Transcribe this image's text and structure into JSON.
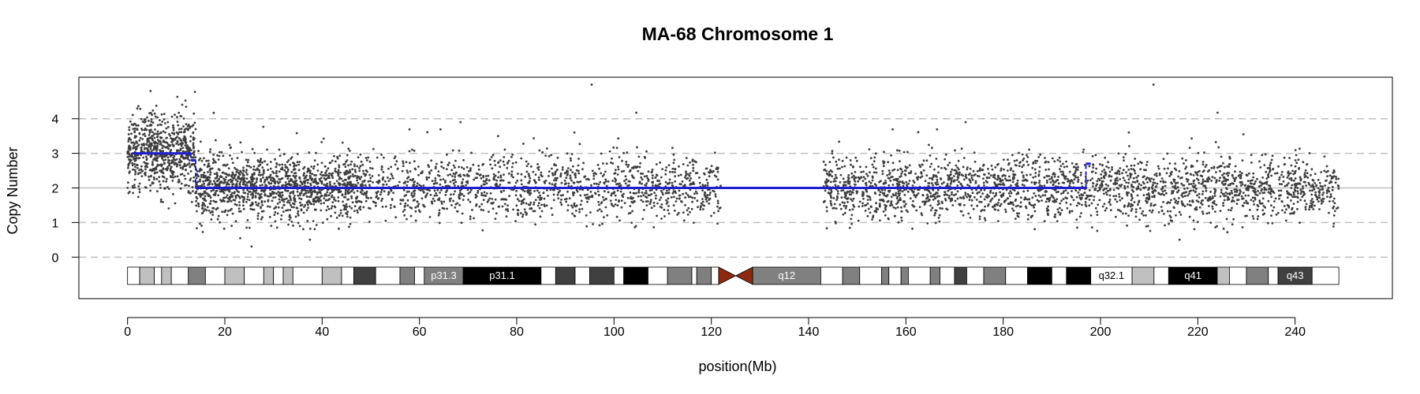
{
  "chart_data": {
    "type": "scatter",
    "title": "MA-68  Chromosome 1",
    "xlabel": "position(Mb)",
    "ylabel": "Copy Number",
    "xlim": [
      -10,
      260
    ],
    "ylim": [
      -1.2,
      5.2
    ],
    "x_ticks": [
      0,
      20,
      40,
      60,
      80,
      100,
      120,
      140,
      160,
      180,
      200,
      220,
      240
    ],
    "y_ticks": [
      0,
      1,
      2,
      3,
      4
    ],
    "grid": "dashed horizontal lines at 0, 1, 3, 4; solid line at 2",
    "colors": {
      "points": "#3d3d3d",
      "segments": "#1f1fd0",
      "centromere": "#8b2a10",
      "grid": "#c0c0c0"
    },
    "point_density": [
      {
        "start": 0,
        "end": 14,
        "center": 3.0,
        "spread": 0.55,
        "count": 700
      },
      {
        "start": 14,
        "end": 48,
        "center": 2.0,
        "spread": 0.45,
        "count": 1300
      },
      {
        "start": 48,
        "end": 122,
        "center": 2.0,
        "spread": 0.45,
        "count": 1300
      },
      {
        "start": 143,
        "end": 249,
        "center": 2.0,
        "spread": 0.45,
        "count": 2300
      }
    ],
    "segments": [
      {
        "x_start": 1,
        "x_end": 13,
        "value": 3
      },
      {
        "x_start": 13,
        "x_end": 14,
        "value": 2.8
      },
      {
        "x_start": 14,
        "x_end": 48,
        "value": 2
      },
      {
        "x_start": 48,
        "x_end": 197,
        "value": 2
      },
      {
        "x_start": 197,
        "x_end": 198,
        "value": 2.7
      }
    ],
    "cytobands": [
      {
        "start": 0,
        "end": 2.5,
        "stain": "gneg",
        "label": ""
      },
      {
        "start": 2.5,
        "end": 5.5,
        "stain": "gpos25",
        "label": ""
      },
      {
        "start": 5.5,
        "end": 7,
        "stain": "gneg",
        "label": ""
      },
      {
        "start": 7,
        "end": 9,
        "stain": "gpos25",
        "label": ""
      },
      {
        "start": 9,
        "end": 12.5,
        "stain": "gneg",
        "label": ""
      },
      {
        "start": 12.5,
        "end": 16,
        "stain": "gpos50",
        "label": ""
      },
      {
        "start": 16,
        "end": 20,
        "stain": "gneg",
        "label": ""
      },
      {
        "start": 20,
        "end": 24,
        "stain": "gpos25",
        "label": ""
      },
      {
        "start": 24,
        "end": 28,
        "stain": "gneg",
        "label": ""
      },
      {
        "start": 28,
        "end": 30,
        "stain": "gpos25",
        "label": ""
      },
      {
        "start": 30,
        "end": 32,
        "stain": "gneg",
        "label": ""
      },
      {
        "start": 32,
        "end": 34,
        "stain": "gpos25",
        "label": ""
      },
      {
        "start": 34,
        "end": 40,
        "stain": "gneg",
        "label": ""
      },
      {
        "start": 40,
        "end": 44,
        "stain": "gpos25",
        "label": ""
      },
      {
        "start": 44,
        "end": 46.5,
        "stain": "gneg",
        "label": ""
      },
      {
        "start": 46.5,
        "end": 51,
        "stain": "gpos75",
        "label": ""
      },
      {
        "start": 51,
        "end": 56,
        "stain": "gneg",
        "label": ""
      },
      {
        "start": 56,
        "end": 59,
        "stain": "gpos50",
        "label": ""
      },
      {
        "start": 59,
        "end": 61,
        "stain": "gneg",
        "label": ""
      },
      {
        "start": 61,
        "end": 69,
        "stain": "gpos50",
        "label": "p31.3"
      },
      {
        "start": 69,
        "end": 85,
        "stain": "gpos100",
        "label": "p31.1"
      },
      {
        "start": 85,
        "end": 88,
        "stain": "gneg",
        "label": ""
      },
      {
        "start": 88,
        "end": 92,
        "stain": "gpos75",
        "label": ""
      },
      {
        "start": 92,
        "end": 95,
        "stain": "gneg",
        "label": ""
      },
      {
        "start": 95,
        "end": 100,
        "stain": "gpos75",
        "label": ""
      },
      {
        "start": 100,
        "end": 102,
        "stain": "gneg",
        "label": ""
      },
      {
        "start": 102,
        "end": 107,
        "stain": "gpos100",
        "label": ""
      },
      {
        "start": 107,
        "end": 111,
        "stain": "gneg",
        "label": ""
      },
      {
        "start": 111,
        "end": 116,
        "stain": "gpos50",
        "label": ""
      },
      {
        "start": 116,
        "end": 117,
        "stain": "gneg",
        "label": ""
      },
      {
        "start": 117,
        "end": 120,
        "stain": "gpos50",
        "label": ""
      },
      {
        "start": 120,
        "end": 121.5,
        "stain": "gneg",
        "label": ""
      },
      {
        "start": 121.5,
        "end": 125,
        "stain": "acen",
        "label": ""
      },
      {
        "start": 125,
        "end": 128.5,
        "stain": "acen",
        "label": ""
      },
      {
        "start": 128.5,
        "end": 142.5,
        "stain": "gvar",
        "label": "q12"
      },
      {
        "start": 142.5,
        "end": 147,
        "stain": "gneg",
        "label": ""
      },
      {
        "start": 147,
        "end": 150.5,
        "stain": "gpos50",
        "label": ""
      },
      {
        "start": 150.5,
        "end": 155,
        "stain": "gneg",
        "label": ""
      },
      {
        "start": 155,
        "end": 156.5,
        "stain": "gpos50",
        "label": ""
      },
      {
        "start": 156.5,
        "end": 159,
        "stain": "gneg",
        "label": ""
      },
      {
        "start": 159,
        "end": 160.5,
        "stain": "gpos50",
        "label": ""
      },
      {
        "start": 160.5,
        "end": 165,
        "stain": "gneg",
        "label": ""
      },
      {
        "start": 165,
        "end": 167,
        "stain": "gpos50",
        "label": ""
      },
      {
        "start": 167,
        "end": 170,
        "stain": "gneg",
        "label": ""
      },
      {
        "start": 170,
        "end": 172.5,
        "stain": "gpos75",
        "label": ""
      },
      {
        "start": 172.5,
        "end": 176,
        "stain": "gneg",
        "label": ""
      },
      {
        "start": 176,
        "end": 180.5,
        "stain": "gpos50",
        "label": ""
      },
      {
        "start": 180.5,
        "end": 185,
        "stain": "gneg",
        "label": ""
      },
      {
        "start": 185,
        "end": 190,
        "stain": "gpos100",
        "label": ""
      },
      {
        "start": 190,
        "end": 193,
        "stain": "gneg",
        "label": ""
      },
      {
        "start": 193,
        "end": 198,
        "stain": "gpos100",
        "label": ""
      },
      {
        "start": 198,
        "end": 206.5,
        "stain": "gneg",
        "label": "q32.1"
      },
      {
        "start": 206.5,
        "end": 211,
        "stain": "gpos25",
        "label": ""
      },
      {
        "start": 211,
        "end": 214,
        "stain": "gneg",
        "label": ""
      },
      {
        "start": 214,
        "end": 224,
        "stain": "gpos100",
        "label": "q41"
      },
      {
        "start": 224,
        "end": 226.5,
        "stain": "gpos25",
        "label": ""
      },
      {
        "start": 226.5,
        "end": 230,
        "stain": "gneg",
        "label": ""
      },
      {
        "start": 230,
        "end": 234.5,
        "stain": "gpos50",
        "label": ""
      },
      {
        "start": 234.5,
        "end": 236.5,
        "stain": "gneg",
        "label": ""
      },
      {
        "start": 236.5,
        "end": 243.5,
        "stain": "gpos75",
        "label": "q43"
      },
      {
        "start": 243.5,
        "end": 249,
        "stain": "gneg",
        "label": ""
      }
    ],
    "stain_colors": {
      "gneg": "#ffffff",
      "gpos25": "#c0c0c0",
      "gpos50": "#808080",
      "gpos75": "#404040",
      "gpos100": "#000000",
      "gvar": "#808080",
      "acen": "#8b2a10"
    }
  }
}
